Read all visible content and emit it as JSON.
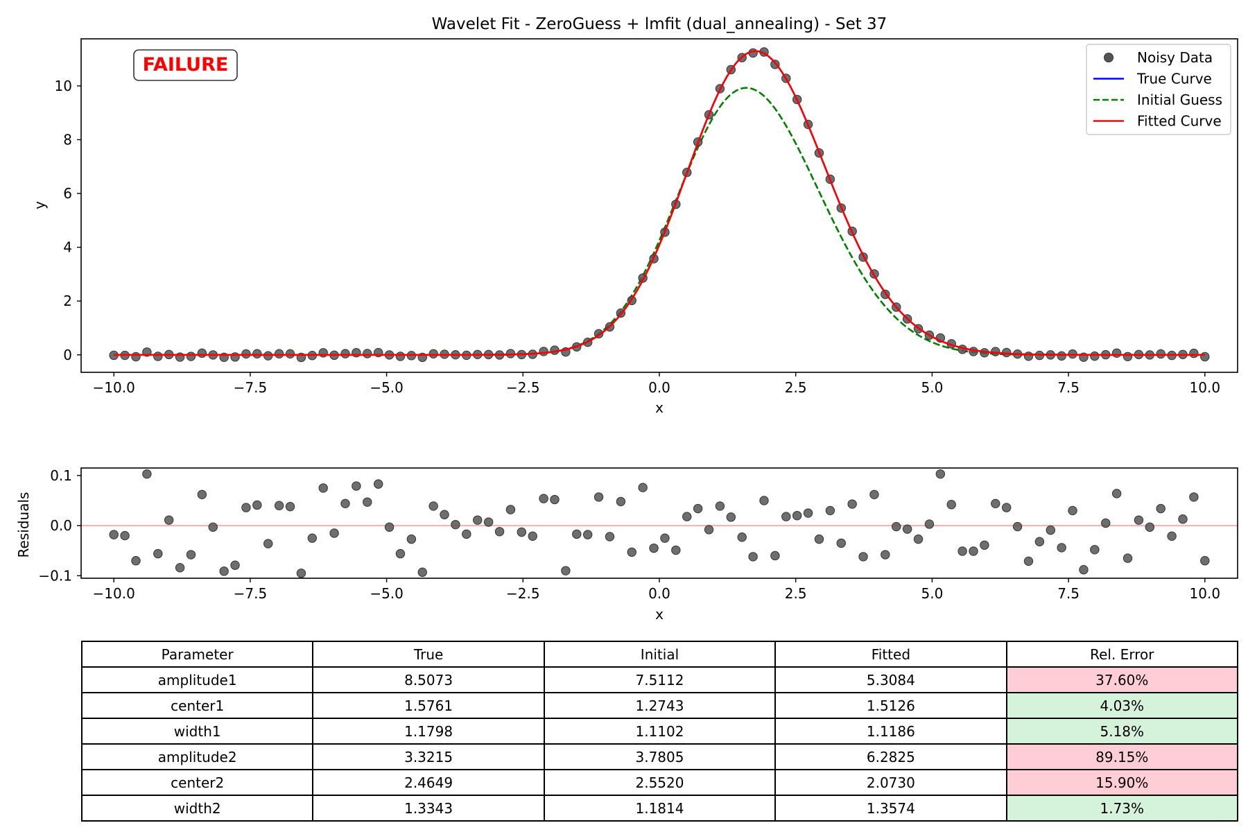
{
  "chart_data": [
    {
      "type": "line",
      "title": "Wavelet Fit - ZeroGuess + lmfit (dual_annealing) - Set 37",
      "xlabel": "x",
      "ylabel": "y",
      "xlim": [
        -10.6,
        10.6
      ],
      "ylim": [
        -0.65,
        11.75
      ],
      "x_ticks": [
        -10.0,
        -7.5,
        -5.0,
        -2.5,
        0.0,
        2.5,
        5.0,
        7.5,
        10.0
      ],
      "y_ticks": [
        0,
        2,
        4,
        6,
        8,
        10
      ],
      "grid": false,
      "legend_position": "top-right",
      "status_label": "FAILURE",
      "status_color": "#ff0000",
      "series": [
        {
          "name": "Noisy Data",
          "kind": "scatter",
          "color": "#555555"
        },
        {
          "name": "True Curve",
          "kind": "line",
          "color": "#0000ff"
        },
        {
          "name": "Initial Guess",
          "kind": "dashed-line",
          "color": "#008000"
        },
        {
          "name": "Fitted Curve",
          "kind": "line",
          "color": "#ff0000"
        }
      ],
      "model": "sum of two Gaussians: amplitude * exp(-(x-center)^2 / (2*width^2))",
      "residuals": [
        -0.018,
        -0.02,
        -0.07,
        0.103,
        -0.056,
        0.011,
        -0.084,
        -0.058,
        0.062,
        -0.003,
        -0.091,
        -0.079,
        0.036,
        0.041,
        -0.036,
        0.04,
        0.038,
        -0.095,
        -0.025,
        0.075,
        -0.015,
        0.044,
        0.079,
        0.047,
        0.083,
        -0.003,
        -0.056,
        -0.027,
        -0.093,
        0.039,
        0.022,
        0.002,
        -0.017,
        0.011,
        0.007,
        -0.012,
        0.032,
        -0.013,
        -0.021,
        0.054,
        0.052,
        -0.09,
        -0.017,
        -0.018,
        0.057,
        -0.022,
        0.048,
        -0.053,
        0.076,
        -0.045,
        -0.025,
        -0.049,
        0.018,
        0.034,
        -0.008,
        0.039,
        0.017,
        -0.023,
        -0.062,
        0.05,
        -0.06,
        0.018,
        0.02,
        0.025,
        -0.027,
        0.03,
        -0.035,
        0.043,
        -0.062,
        0.062,
        -0.058,
        -0.002,
        -0.007,
        -0.027,
        0.003,
        0.103,
        0.042,
        -0.051,
        -0.051,
        -0.039,
        0.044,
        0.036,
        -0.002,
        -0.071,
        -0.032,
        -0.009,
        -0.044,
        0.03,
        -0.088,
        -0.048,
        0.005,
        0.064,
        -0.065,
        0.011,
        -0.003,
        0.034,
        -0.021,
        0.013,
        0.057,
        -0.07
      ]
    },
    {
      "type": "scatter",
      "xlabel": "x",
      "ylabel": "Residuals",
      "xlim": [
        -10.6,
        10.6
      ],
      "ylim": [
        -0.105,
        0.115
      ],
      "x_ticks": [
        -10.0,
        -7.5,
        -5.0,
        -2.5,
        0.0,
        2.5,
        5.0,
        7.5,
        10.0
      ],
      "y_ticks": [
        -0.1,
        0.0,
        0.1
      ],
      "zero_line_color": "#f4b6b6",
      "point_color": "#555555"
    }
  ],
  "params": {
    "columns": [
      "Parameter",
      "True",
      "Initial",
      "Fitted",
      "Rel. Error"
    ],
    "rows": [
      {
        "name": "amplitude1",
        "true": 8.5073,
        "initial": 7.5112,
        "fitted": 5.3084,
        "true_label": "8.5073",
        "initial_label": "7.5112",
        "fitted_label": "5.3084",
        "error": "37.60%",
        "status": "bad"
      },
      {
        "name": "center1",
        "true": 1.5761,
        "initial": 1.2743,
        "fitted": 1.5126,
        "true_label": "1.5761",
        "initial_label": "1.2743",
        "fitted_label": "1.5126",
        "error": "4.03%",
        "status": "good"
      },
      {
        "name": "width1",
        "true": 1.1798,
        "initial": 1.1102,
        "fitted": 1.1186,
        "true_label": "1.1798",
        "initial_label": "1.1102",
        "fitted_label": "1.1186",
        "error": "5.18%",
        "status": "good"
      },
      {
        "name": "amplitude2",
        "true": 3.3215,
        "initial": 3.7805,
        "fitted": 6.2825,
        "true_label": "3.3215",
        "initial_label": "3.7805",
        "fitted_label": "6.2825",
        "error": "89.15%",
        "status": "bad"
      },
      {
        "name": "center2",
        "true": 2.4649,
        "initial": 2.552,
        "fitted": 2.073,
        "true_label": "2.4649",
        "initial_label": "2.5520",
        "fitted_label": "2.0730",
        "error": "15.90%",
        "status": "bad"
      },
      {
        "name": "width2",
        "true": 1.3343,
        "initial": 1.1814,
        "fitted": 1.3574,
        "true_label": "1.3343",
        "initial_label": "1.1814",
        "fitted_label": "1.3574",
        "error": "1.73%",
        "status": "good"
      }
    ]
  }
}
